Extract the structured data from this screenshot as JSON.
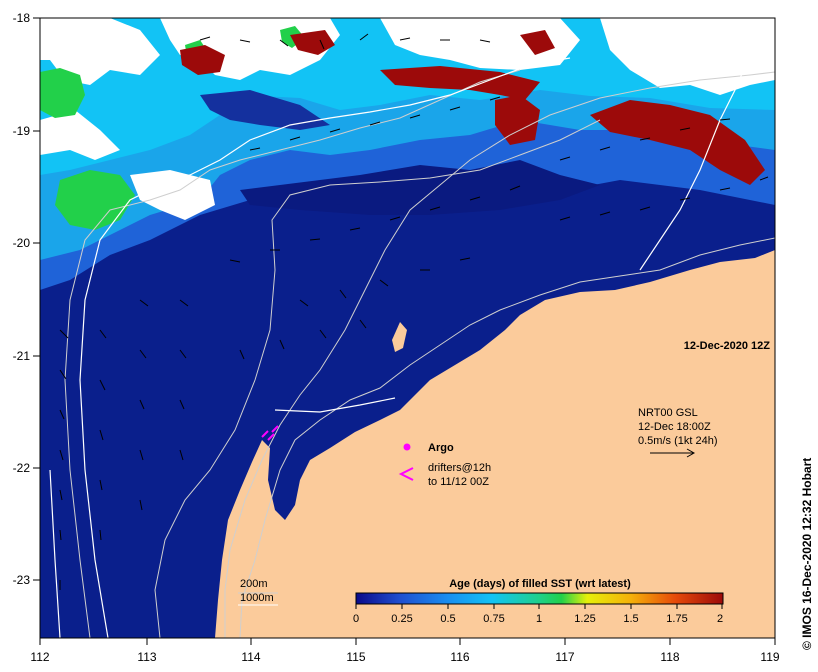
{
  "map": {
    "date_label": "12-Dec-2020 12Z",
    "x_ticks": [
      "112",
      "113",
      "114",
      "115",
      "116",
      "117",
      "118",
      "119"
    ],
    "y_ticks": [
      "-18",
      "-19",
      "-20",
      "-21",
      "-22",
      "-23"
    ],
    "nrt": {
      "line1": "NRT00 GSL",
      "line2": "12-Dec 18:00Z",
      "line3": "0.5m/s (1kt 24h)"
    },
    "legend_argo": "Argo",
    "legend_drifters_1": "drifters@12h",
    "legend_drifters_2": "to 11/12 00Z",
    "contour_200": "200m",
    "contour_1000": "1000m",
    "colorbar": {
      "title": "Age (days) of filled SST (wrt latest)",
      "ticks": [
        "0",
        "0.25",
        "0.5",
        "0.75",
        "1",
        "1.25",
        "1.5",
        "1.75",
        "2"
      ]
    },
    "credit": "© IMOS 16-Dec-2020 12:32 Hobart"
  },
  "colors": {
    "land": "#fbcb9b",
    "deep_navy": "#0a1f8c",
    "navy": "#14309e",
    "mid_blue": "#1f63d8",
    "light_blue": "#1aa5ea",
    "cyan": "#12c3f5",
    "green": "#22d04a",
    "dark_red": "#9c0a0a",
    "magenta": "#ff00ff"
  }
}
